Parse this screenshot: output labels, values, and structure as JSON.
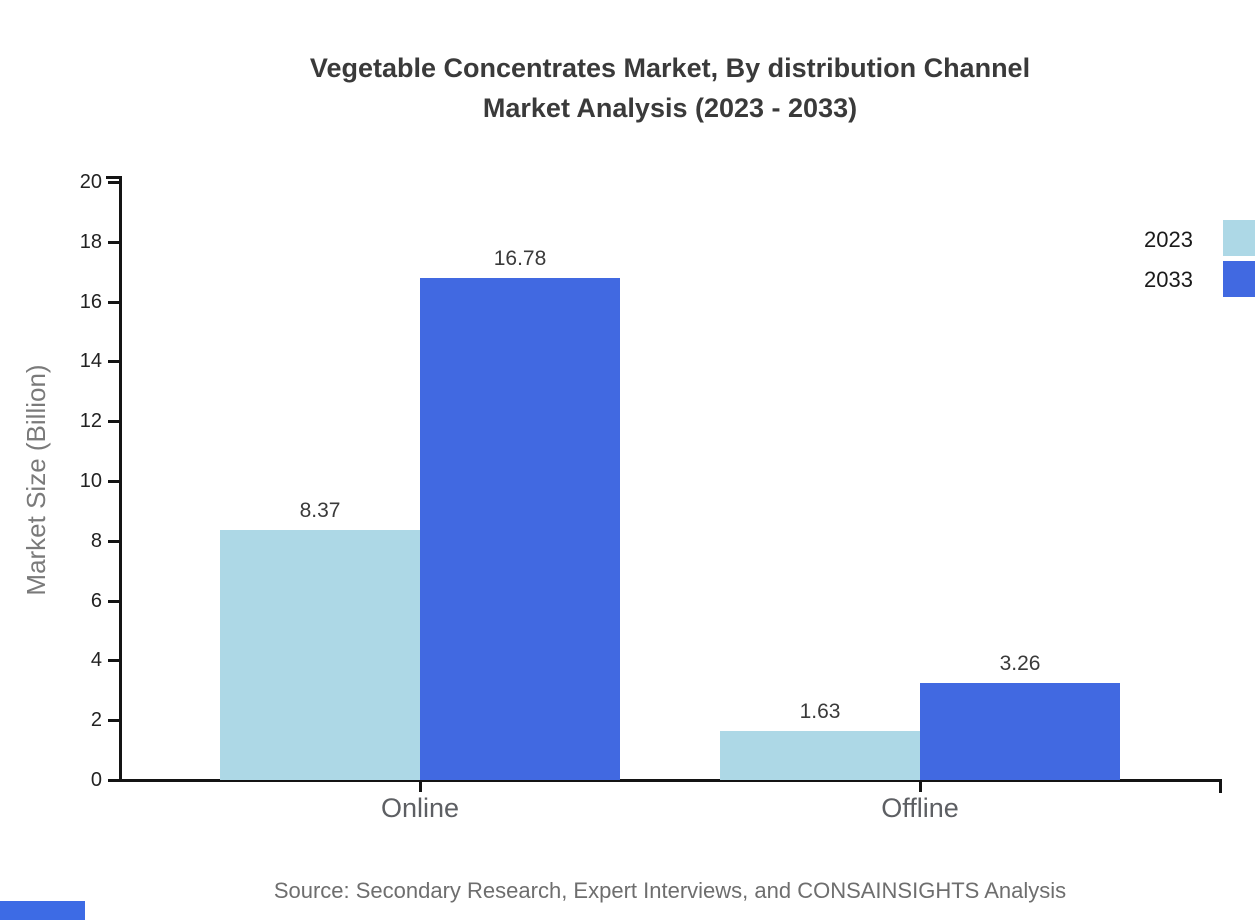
{
  "title": {
    "line1": "Vegetable Concentrates Market, By distribution Channel",
    "line2": "Market Analysis (2023 - 2033)"
  },
  "source": "Source: Secondary Research, Expert Interviews, and CONSAINSIGHTS Analysis",
  "legend": [
    {
      "label": "2023",
      "color": "#ADD8E6"
    },
    {
      "label": "2033",
      "color": "#4169E1"
    }
  ],
  "colors": {
    "axis": "#141414",
    "series_2023": "#ADD8E6",
    "series_2033": "#4169E1",
    "footer_block": "#3D6BE5"
  },
  "chart_data": {
    "type": "bar",
    "title": "Vegetable Concentrates Market, By distribution Channel Market Analysis (2023 - 2033)",
    "categories": [
      "Online",
      "Offline"
    ],
    "series": [
      {
        "name": "2023",
        "color": "#ADD8E6",
        "values": [
          8.37,
          1.63
        ]
      },
      {
        "name": "2033",
        "color": "#4169E1",
        "values": [
          16.78,
          3.26
        ]
      }
    ],
    "value_labels": [
      [
        "8.37",
        "1.63"
      ],
      [
        "16.78",
        "3.26"
      ]
    ],
    "xlabel": "",
    "ylabel": "Market Size (Billion)",
    "ylim": [
      0,
      20
    ],
    "ytick_step": 2,
    "grid": false,
    "legend_position": "top-right"
  }
}
